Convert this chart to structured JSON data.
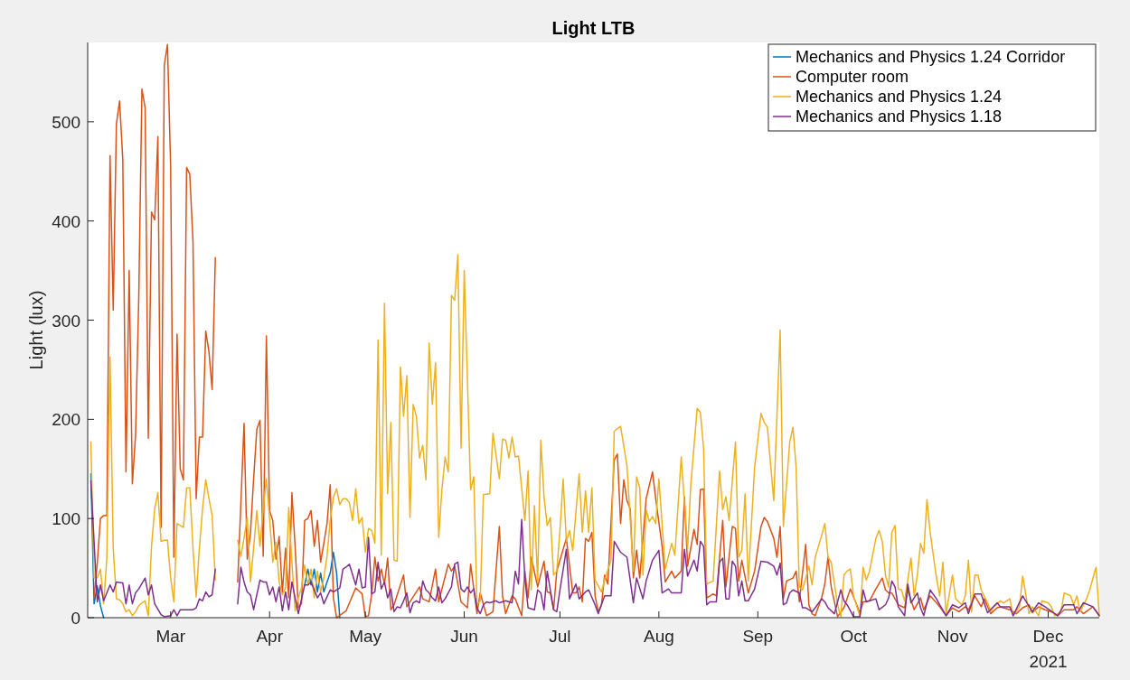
{
  "chart_data": {
    "type": "line",
    "title": "Light LTB",
    "ylabel": "Light (lux)",
    "xlim": [
      "2021-02-03",
      "2021-12-17"
    ],
    "xticks": [
      {
        "value": "2021-03-01",
        "label": "Mar"
      },
      {
        "value": "2021-04-01",
        "label": "Apr"
      },
      {
        "value": "2021-05-01",
        "label": "May"
      },
      {
        "value": "2021-06-01",
        "label": "Jun"
      },
      {
        "value": "2021-07-01",
        "label": "Jul"
      },
      {
        "value": "2021-08-01",
        "label": "Aug"
      },
      {
        "value": "2021-09-01",
        "label": "Sep"
      },
      {
        "value": "2021-10-01",
        "label": "Oct"
      },
      {
        "value": "2021-11-01",
        "label": "Nov"
      },
      {
        "value": "2021-12-01",
        "label": "Dec"
      }
    ],
    "ylim": [
      0,
      580
    ],
    "yticks": [
      0,
      100,
      200,
      300,
      400,
      500
    ],
    "grid": false,
    "legend": "top right",
    "marker": "none",
    "line_style": "solid",
    "annotations": [
      "2021"
    ],
    "series": [
      {
        "name": "Mechanics and Physics 1.24 Corridor",
        "color": "#0072bd",
        "x": [
          "2021-02-04",
          "2021-02-05",
          "2021-02-06",
          "2021-02-07",
          "2021-02-08",
          "2021-03-01",
          "2021-04-12",
          "2021-04-13",
          "2021-04-14",
          "2021-04-15",
          "2021-04-16",
          "2021-04-17",
          "2021-04-18",
          "2021-04-19",
          "2021-04-20",
          "2021-04-21",
          "2021-04-22",
          "2021-04-23"
        ],
        "values": [
          145,
          14,
          32,
          12,
          0,
          null,
          33,
          49,
          33,
          49,
          26,
          45,
          26,
          36,
          45,
          66,
          45,
          0
        ]
      },
      {
        "name": "Computer room",
        "color": "#d95319",
        "x": [
          "2021-02-05",
          "2021-02-06",
          "2021-02-07",
          "2021-02-08",
          "2021-02-09",
          "2021-02-10",
          "2021-02-11",
          "2021-02-12",
          "2021-02-13",
          "2021-02-14",
          "2021-02-15",
          "2021-02-16",
          "2021-02-17",
          "2021-02-18",
          "2021-02-19",
          "2021-02-20",
          "2021-02-21",
          "2021-02-22",
          "2021-02-23",
          "2021-02-24",
          "2021-02-25",
          "2021-02-26",
          "2021-02-27",
          "2021-02-28",
          "2021-03-01",
          "2021-03-02",
          "2021-03-03",
          "2021-03-04",
          "2021-03-05",
          "2021-03-06",
          "2021-03-07",
          "2021-03-08",
          "2021-03-09",
          "2021-03-10",
          "2021-03-11",
          "2021-03-12",
          "2021-03-13",
          "2021-03-14",
          "2021-03-15",
          "2021-03-18",
          "2021-03-22",
          "2021-03-23",
          "2021-03-24",
          "2021-03-25",
          "2021-03-26",
          "2021-03-27",
          "2021-03-28",
          "2021-03-29",
          "2021-03-30",
          "2021-03-31",
          "2021-04-01",
          "2021-04-02",
          "2021-04-03",
          "2021-04-04",
          "2021-04-05",
          "2021-04-06",
          "2021-04-07",
          "2021-04-08",
          "2021-04-09",
          "2021-04-10",
          "2021-04-11",
          "2021-04-12",
          "2021-04-13",
          "2021-04-14",
          "2021-04-15",
          "2021-04-16",
          "2021-04-17",
          "2021-04-18",
          "2021-04-19",
          "2021-04-20",
          "2021-04-21",
          "2021-04-22",
          "2021-04-25",
          "2021-04-28",
          "2021-04-30",
          "2021-05-01",
          "2021-05-02",
          "2021-05-03",
          "2021-05-04",
          "2021-05-05",
          "2021-05-06",
          "2021-05-07",
          "2021-05-08",
          "2021-05-09",
          "2021-05-10",
          "2021-05-13",
          "2021-05-14",
          "2021-05-15",
          "2021-05-18",
          "2021-05-19",
          "2021-05-21",
          "2021-05-23",
          "2021-05-24",
          "2021-05-27",
          "2021-05-28",
          "2021-05-29",
          "2021-05-31",
          "2021-06-01",
          "2021-06-02",
          "2021-06-03",
          "2021-06-05",
          "2021-06-06",
          "2021-06-08",
          "2021-06-10",
          "2021-06-12",
          "2021-06-13",
          "2021-06-14",
          "2021-06-16",
          "2021-06-17",
          "2021-06-19",
          "2021-06-20",
          "2021-06-21",
          "2021-06-22",
          "2021-06-24",
          "2021-06-26",
          "2021-06-27",
          "2021-06-28",
          "2021-06-29",
          "2021-06-30",
          "2021-07-03",
          "2021-07-05",
          "2021-07-06",
          "2021-07-07",
          "2021-07-08",
          "2021-07-09",
          "2021-07-10",
          "2021-07-11",
          "2021-07-12",
          "2021-07-13",
          "2021-07-14",
          "2021-07-15",
          "2021-07-16",
          "2021-07-18",
          "2021-07-19",
          "2021-07-20",
          "2021-07-21",
          "2021-07-22",
          "2021-07-23",
          "2021-07-24",
          "2021-07-25",
          "2021-07-26",
          "2021-07-28",
          "2021-07-30",
          "2021-07-31",
          "2021-08-02",
          "2021-08-03",
          "2021-08-05",
          "2021-08-06",
          "2021-08-08",
          "2021-08-09",
          "2021-08-10",
          "2021-08-12",
          "2021-08-13",
          "2021-08-14",
          "2021-08-15",
          "2021-08-16",
          "2021-08-18",
          "2021-08-19",
          "2021-08-21",
          "2021-08-22",
          "2021-08-24",
          "2021-08-25",
          "2021-08-26",
          "2021-08-27",
          "2021-08-29",
          "2021-08-31",
          "2021-09-02",
          "2021-09-03",
          "2021-09-04",
          "2021-09-06",
          "2021-09-07",
          "2021-09-08",
          "2021-09-09",
          "2021-09-10",
          "2021-09-12",
          "2021-09-13",
          "2021-09-14",
          "2021-09-16",
          "2021-09-17",
          "2021-09-18",
          "2021-09-19",
          "2021-09-21",
          "2021-09-22",
          "2021-09-23",
          "2021-09-24",
          "2021-09-26",
          "2021-09-28",
          "2021-09-30",
          "2021-10-02",
          "2021-10-03",
          "2021-10-04",
          "2021-10-06",
          "2021-10-08",
          "2021-10-10",
          "2021-10-11",
          "2021-10-12",
          "2021-10-13",
          "2021-10-15",
          "2021-10-17",
          "2021-10-18",
          "2021-10-20",
          "2021-10-22",
          "2021-10-23",
          "2021-10-25",
          "2021-10-27",
          "2021-10-28",
          "2021-10-30",
          "2021-11-01",
          "2021-11-03",
          "2021-11-05",
          "2021-11-06",
          "2021-11-08",
          "2021-11-10",
          "2021-11-11",
          "2021-11-13",
          "2021-11-15",
          "2021-11-16",
          "2021-11-19",
          "2021-11-21",
          "2021-11-23",
          "2021-11-25",
          "2021-11-26",
          "2021-11-28",
          "2021-11-30",
          "2021-12-02",
          "2021-12-04",
          "2021-12-06",
          "2021-12-09",
          "2021-12-10",
          "2021-12-12",
          "2021-12-15",
          "2021-12-17"
        ],
        "values": [
          20,
          55,
          100,
          103,
          103,
          466,
          310,
          498,
          521,
          462,
          147,
          350,
          135,
          184,
          321,
          533,
          514,
          181,
          409,
          401,
          485,
          91,
          557,
          578,
          454,
          61,
          286,
          150,
          139,
          454,
          447,
          379,
          120,
          182,
          182,
          289,
          268,
          230,
          363,
          null,
          36,
          115,
          196,
          59,
          85,
          140,
          190,
          199,
          62,
          284,
          108,
          98,
          59,
          82,
          26,
          70,
          20,
          126,
          72,
          10,
          14,
          98,
          100,
          108,
          72,
          98,
          56,
          75,
          95,
          134,
          20,
          0,
          7,
          30,
          24,
          1,
          2,
          24,
          61,
          37,
          49,
          34,
          60,
          8,
          13,
          43,
          11,
          16,
          31,
          19,
          16,
          49,
          16,
          54,
          47,
          52,
          16,
          13,
          10,
          54,
          4,
          25,
          2,
          6,
          92,
          22,
          4,
          22,
          19,
          2,
          47,
          20,
          61,
          31,
          57,
          26,
          25,
          8,
          47,
          80,
          25,
          25,
          31,
          16,
          80,
          77,
          86,
          22,
          6,
          13,
          43,
          34,
          159,
          165,
          95,
          139,
          118,
          110,
          40,
          68,
          40,
          120,
          147,
          120,
          72,
          36,
          47,
          40,
          47,
          122,
          52,
          89,
          74,
          129,
          130,
          20,
          24,
          22,
          98,
          31,
          92,
          90,
          37,
          58,
          25,
          47,
          92,
          101,
          97,
          80,
          61,
          92,
          19,
          37,
          40,
          47,
          16,
          74,
          13,
          4,
          2,
          20,
          34,
          61,
          31,
          1,
          10,
          29,
          13,
          4,
          16,
          17,
          29,
          40,
          28,
          25,
          25,
          13,
          10,
          28,
          8,
          20,
          8,
          22,
          15,
          11,
          2,
          10,
          6,
          11,
          8,
          22,
          11,
          19,
          4,
          10,
          11,
          8,
          4,
          10,
          13,
          5,
          11,
          8,
          6,
          2,
          8,
          8,
          11,
          4,
          11,
          2
        ]
      },
      {
        "name": "Mechanics and Physics 1.24",
        "color": "#edb120",
        "x": [
          "2021-02-04",
          "2021-02-05",
          "2021-02-06",
          "2021-02-07",
          "2021-02-08",
          "2021-02-09",
          "2021-02-10",
          "2021-02-11",
          "2021-02-12",
          "2021-02-13",
          "2021-02-14",
          "2021-02-15",
          "2021-02-16",
          "2021-02-17",
          "2021-02-18",
          "2021-02-19",
          "2021-02-20",
          "2021-02-21",
          "2021-02-22",
          "2021-02-23",
          "2021-02-24",
          "2021-02-25",
          "2021-02-26",
          "2021-02-27",
          "2021-02-28",
          "2021-03-01",
          "2021-03-02",
          "2021-03-03",
          "2021-03-04",
          "2021-03-05",
          "2021-03-06",
          "2021-03-07",
          "2021-03-08",
          "2021-03-09",
          "2021-03-10",
          "2021-03-11",
          "2021-03-12",
          "2021-03-13",
          "2021-03-14",
          "2021-03-15",
          "2021-03-18",
          "2021-03-22",
          "2021-03-23",
          "2021-03-24",
          "2021-03-25",
          "2021-03-26",
          "2021-03-27",
          "2021-03-28",
          "2021-03-29",
          "2021-03-30",
          "2021-03-31",
          "2021-04-01",
          "2021-04-02",
          "2021-04-03",
          "2021-04-04",
          "2021-04-05",
          "2021-04-06",
          "2021-04-07",
          "2021-04-08",
          "2021-04-09",
          "2021-04-10",
          "2021-04-11",
          "2021-04-12",
          "2021-04-13",
          "2021-04-14",
          "2021-04-15",
          "2021-04-16",
          "2021-04-17",
          "2021-04-18",
          "2021-04-19",
          "2021-04-20",
          "2021-04-21",
          "2021-04-22",
          "2021-04-23",
          "2021-04-24",
          "2021-04-25",
          "2021-04-26",
          "2021-04-27",
          "2021-04-28",
          "2021-04-29",
          "2021-04-30",
          "2021-05-01",
          "2021-05-02",
          "2021-05-03",
          "2021-05-04",
          "2021-05-05",
          "2021-05-06",
          "2021-05-07",
          "2021-05-08",
          "2021-05-09",
          "2021-05-10",
          "2021-05-11",
          "2021-05-12",
          "2021-05-13",
          "2021-05-14",
          "2021-05-15",
          "2021-05-16",
          "2021-05-17",
          "2021-05-18",
          "2021-05-19",
          "2021-05-20",
          "2021-05-21",
          "2021-05-22",
          "2021-05-23",
          "2021-05-24",
          "2021-05-25",
          "2021-05-26",
          "2021-05-27",
          "2021-05-28",
          "2021-05-29",
          "2021-05-30",
          "2021-05-31",
          "2021-06-01",
          "2021-06-03",
          "2021-06-04",
          "2021-06-05",
          "2021-06-06",
          "2021-06-07",
          "2021-06-09",
          "2021-06-10",
          "2021-06-12",
          "2021-06-13",
          "2021-06-14",
          "2021-06-15",
          "2021-06-16",
          "2021-06-17",
          "2021-06-18",
          "2021-06-20",
          "2021-06-21",
          "2021-06-22",
          "2021-06-23",
          "2021-06-24",
          "2021-06-25",
          "2021-06-26",
          "2021-06-27",
          "2021-06-28",
          "2021-06-29",
          "2021-06-30",
          "2021-07-01",
          "2021-07-02",
          "2021-07-03",
          "2021-07-04",
          "2021-07-05",
          "2021-07-07",
          "2021-07-08",
          "2021-07-09",
          "2021-07-10",
          "2021-07-11",
          "2021-07-12",
          "2021-07-14",
          "2021-07-15",
          "2021-07-17",
          "2021-07-18",
          "2021-07-20",
          "2021-07-22",
          "2021-07-24",
          "2021-07-25",
          "2021-07-26",
          "2021-07-27",
          "2021-07-28",
          "2021-07-29",
          "2021-07-30",
          "2021-07-31",
          "2021-08-01",
          "2021-08-03",
          "2021-08-05",
          "2021-08-06",
          "2021-08-08",
          "2021-08-10",
          "2021-08-11",
          "2021-08-13",
          "2021-08-14",
          "2021-08-15",
          "2021-08-16",
          "2021-08-18",
          "2021-08-20",
          "2021-08-21",
          "2021-08-22",
          "2021-08-23",
          "2021-08-25",
          "2021-08-26",
          "2021-08-27",
          "2021-08-28",
          "2021-08-29",
          "2021-08-31",
          "2021-09-02",
          "2021-09-03",
          "2021-09-04",
          "2021-09-06",
          "2021-09-08",
          "2021-09-09",
          "2021-09-11",
          "2021-09-12",
          "2021-09-13",
          "2021-09-14",
          "2021-09-15",
          "2021-09-17",
          "2021-09-18",
          "2021-09-19",
          "2021-09-21",
          "2021-09-22",
          "2021-09-23",
          "2021-09-24",
          "2021-09-26",
          "2021-09-27",
          "2021-09-28",
          "2021-09-29",
          "2021-09-30",
          "2021-10-01",
          "2021-10-03",
          "2021-10-04",
          "2021-10-05",
          "2021-10-06",
          "2021-10-08",
          "2021-10-09",
          "2021-10-10",
          "2021-10-11",
          "2021-10-12",
          "2021-10-13",
          "2021-10-14",
          "2021-10-15",
          "2021-10-16",
          "2021-10-17",
          "2021-10-19",
          "2021-10-20",
          "2021-10-21",
          "2021-10-22",
          "2021-10-23",
          "2021-10-24",
          "2021-10-25",
          "2021-10-27",
          "2021-10-28",
          "2021-10-29",
          "2021-10-30",
          "2021-11-01",
          "2021-11-02",
          "2021-11-04",
          "2021-11-05",
          "2021-11-06",
          "2021-11-07",
          "2021-11-08",
          "2021-11-09",
          "2021-11-10",
          "2021-11-12",
          "2021-11-13",
          "2021-11-14",
          "2021-11-16",
          "2021-11-17",
          "2021-11-19",
          "2021-11-20",
          "2021-11-22",
          "2021-11-23",
          "2021-11-25",
          "2021-11-26",
          "2021-11-28",
          "2021-11-29",
          "2021-12-01",
          "2021-12-02",
          "2021-12-03",
          "2021-12-05",
          "2021-12-06",
          "2021-12-08",
          "2021-12-09",
          "2021-12-10",
          "2021-12-11",
          "2021-12-13",
          "2021-12-14",
          "2021-12-16",
          "2021-12-17"
        ],
        "values": [
          177,
          40,
          40,
          49,
          14,
          60,
          263,
          70,
          19,
          18,
          14,
          6,
          8,
          2,
          6,
          12,
          15,
          17,
          2,
          72,
          110,
          126,
          77,
          78,
          78,
          40,
          16,
          95,
          93,
          91,
          131,
          131,
          70,
          21,
          70,
          110,
          139,
          120,
          103,
          38,
          null,
          78,
          62,
          80,
          101,
          36,
          70,
          108,
          72,
          110,
          140,
          100,
          56,
          76,
          36,
          23,
          30,
          111,
          56,
          7,
          20,
          30,
          53,
          33,
          49,
          20,
          47,
          26,
          40,
          62,
          98,
          121,
          130,
          114,
          120,
          120,
          116,
          98,
          130,
          95,
          101,
          66,
          90,
          88,
          75,
          280,
          63,
          317,
          125,
          197,
          58,
          57,
          253,
          203,
          244,
          101,
          215,
          203,
          161,
          174,
          139,
          277,
          215,
          257,
          81,
          129,
          162,
          147,
          325,
          320,
          366,
          171,
          350,
          129,
          142,
          13,
          17,
          124,
          125,
          186,
          140,
          180,
          179,
          161,
          182,
          162,
          163,
          98,
          148,
          28,
          113,
          36,
          179,
          122,
          93,
          101,
          43,
          47,
          88,
          140,
          77,
          88,
          68,
          145,
          86,
          128,
          86,
          131,
          38,
          26,
          38,
          58,
          188,
          193,
          153,
          47,
          142,
          131,
          43,
          109,
          97,
          102,
          95,
          140,
          49,
          75,
          63,
          162,
          70,
          134,
          211,
          207,
          171,
          34,
          37,
          148,
          109,
          122,
          98,
          177,
          61,
          68,
          125,
          37,
          152,
          206,
          197,
          192,
          118,
          290,
          92,
          177,
          192,
          152,
          31,
          28,
          52,
          33,
          61,
          83,
          95,
          61,
          56,
          13,
          1,
          43,
          47,
          49,
          22,
          1,
          51,
          38,
          47,
          80,
          88,
          77,
          43,
          31,
          86,
          93,
          29,
          28,
          17,
          60,
          22,
          43,
          75,
          65,
          119,
          86,
          40,
          22,
          56,
          4,
          43,
          19,
          13,
          22,
          58,
          6,
          43,
          43,
          28,
          15,
          6,
          11,
          17,
          15,
          19,
          2,
          11,
          42,
          4,
          11,
          2,
          17,
          15,
          11,
          2,
          6,
          25,
          22,
          13,
          22,
          6,
          19,
          28,
          51,
          2
        ]
      },
      {
        "name": "Mechanics and Physics 1.18",
        "color": "#7e2f8e",
        "x": [
          "2021-02-04",
          "2021-02-06",
          "2021-02-07",
          "2021-02-08",
          "2021-02-10",
          "2021-02-11",
          "2021-02-12",
          "2021-02-14",
          "2021-02-15",
          "2021-02-16",
          "2021-02-17",
          "2021-02-18",
          "2021-02-19",
          "2021-02-21",
          "2021-02-22",
          "2021-02-23",
          "2021-02-24",
          "2021-02-26",
          "2021-02-27",
          "2021-03-01",
          "2021-03-02",
          "2021-03-03",
          "2021-03-04",
          "2021-03-06",
          "2021-03-08",
          "2021-03-09",
          "2021-03-10",
          "2021-03-11",
          "2021-03-12",
          "2021-03-13",
          "2021-03-14",
          "2021-03-15",
          "2021-03-18",
          "2021-03-22",
          "2021-03-23",
          "2021-03-24",
          "2021-03-25",
          "2021-03-26",
          "2021-03-27",
          "2021-03-29",
          "2021-03-30",
          "2021-03-31",
          "2021-04-01",
          "2021-04-02",
          "2021-04-03",
          "2021-04-04",
          "2021-04-05",
          "2021-04-06",
          "2021-04-07",
          "2021-04-08",
          "2021-04-09",
          "2021-04-10",
          "2021-04-12",
          "2021-04-13",
          "2021-04-14",
          "2021-04-16",
          "2021-04-17",
          "2021-04-18",
          "2021-04-19",
          "2021-04-20",
          "2021-04-21",
          "2021-04-23",
          "2021-04-24",
          "2021-04-25",
          "2021-04-26",
          "2021-04-28",
          "2021-04-29",
          "2021-04-30",
          "2021-05-01",
          "2021-05-02",
          "2021-05-03",
          "2021-05-04",
          "2021-05-05",
          "2021-05-06",
          "2021-05-07",
          "2021-05-08",
          "2021-05-09",
          "2021-05-10",
          "2021-05-11",
          "2021-05-12",
          "2021-05-13",
          "2021-05-14",
          "2021-05-15",
          "2021-05-16",
          "2021-05-17",
          "2021-05-18",
          "2021-05-19",
          "2021-05-20",
          "2021-05-21",
          "2021-05-22",
          "2021-05-23",
          "2021-05-24",
          "2021-05-25",
          "2021-05-26",
          "2021-05-28",
          "2021-05-29",
          "2021-05-30",
          "2021-05-31",
          "2021-06-01",
          "2021-06-02",
          "2021-06-03",
          "2021-06-04",
          "2021-06-05",
          "2021-06-06",
          "2021-06-07",
          "2021-06-08",
          "2021-06-09",
          "2021-06-11",
          "2021-06-12",
          "2021-06-14",
          "2021-06-16",
          "2021-06-17",
          "2021-06-18",
          "2021-06-19",
          "2021-06-20",
          "2021-06-21",
          "2021-06-23",
          "2021-06-24",
          "2021-06-25",
          "2021-06-26",
          "2021-06-27",
          "2021-06-29",
          "2021-06-30",
          "2021-07-01",
          "2021-07-03",
          "2021-07-04",
          "2021-07-06",
          "2021-07-07",
          "2021-07-09",
          "2021-07-10",
          "2021-07-12",
          "2021-07-13",
          "2021-07-15",
          "2021-07-17",
          "2021-07-18",
          "2021-07-20",
          "2021-07-22",
          "2021-07-24",
          "2021-07-25",
          "2021-07-27",
          "2021-07-28",
          "2021-07-30",
          "2021-08-01",
          "2021-08-02",
          "2021-08-04",
          "2021-08-05",
          "2021-08-08",
          "2021-08-09",
          "2021-08-10",
          "2021-08-12",
          "2021-08-13",
          "2021-08-14",
          "2021-08-15",
          "2021-08-16",
          "2021-08-17",
          "2021-08-19",
          "2021-08-20",
          "2021-08-21",
          "2021-08-22",
          "2021-08-23",
          "2021-08-24",
          "2021-08-25",
          "2021-08-26",
          "2021-08-27",
          "2021-08-28",
          "2021-08-29",
          "2021-08-31",
          "2021-09-02",
          "2021-09-04",
          "2021-09-06",
          "2021-09-07",
          "2021-09-08",
          "2021-09-09",
          "2021-09-10",
          "2021-09-11",
          "2021-09-12",
          "2021-09-14",
          "2021-09-15",
          "2021-09-16",
          "2021-09-18",
          "2021-09-19",
          "2021-09-21",
          "2021-09-22",
          "2021-09-23",
          "2021-09-25",
          "2021-09-27",
          "2021-09-28",
          "2021-09-29",
          "2021-10-01",
          "2021-10-03",
          "2021-10-04",
          "2021-10-05",
          "2021-10-06",
          "2021-10-08",
          "2021-10-09",
          "2021-10-11",
          "2021-10-12",
          "2021-10-13",
          "2021-10-14",
          "2021-10-15",
          "2021-10-17",
          "2021-10-18",
          "2021-10-19",
          "2021-10-21",
          "2021-10-22",
          "2021-10-23",
          "2021-10-25",
          "2021-10-27",
          "2021-10-28",
          "2021-10-30",
          "2021-11-01",
          "2021-11-03",
          "2021-11-05",
          "2021-11-06",
          "2021-11-08",
          "2021-11-10",
          "2021-11-12",
          "2021-11-15",
          "2021-11-16",
          "2021-11-19",
          "2021-11-20",
          "2021-11-23",
          "2021-11-26",
          "2021-11-28",
          "2021-11-30",
          "2021-12-04",
          "2021-12-06",
          "2021-12-09",
          "2021-12-10",
          "2021-12-12",
          "2021-12-15",
          "2021-12-17"
        ],
        "values": [
          138,
          16,
          33,
          17,
          33,
          26,
          36,
          35,
          14,
          33,
          14,
          25,
          29,
          40,
          23,
          33,
          14,
          3,
          1,
          2,
          8,
          2,
          8,
          8,
          8,
          10,
          19,
          17,
          26,
          21,
          23,
          49,
          null,
          14,
          51,
          36,
          26,
          23,
          8,
          38,
          36,
          36,
          23,
          31,
          16,
          31,
          7,
          26,
          8,
          36,
          20,
          4,
          33,
          33,
          36,
          20,
          25,
          14,
          21,
          28,
          26,
          30,
          49,
          51,
          54,
          33,
          49,
          30,
          31,
          81,
          24,
          26,
          56,
          29,
          36,
          20,
          29,
          6,
          11,
          10,
          17,
          25,
          5,
          15,
          17,
          15,
          37,
          28,
          25,
          20,
          17,
          31,
          15,
          19,
          31,
          54,
          56,
          29,
          26,
          31,
          25,
          29,
          10,
          4,
          13,
          16,
          15,
          17,
          15,
          17,
          15,
          47,
          34,
          99,
          40,
          10,
          8,
          28,
          25,
          8,
          47,
          8,
          6,
          28,
          69,
          19,
          34,
          19,
          26,
          28,
          13,
          4,
          22,
          22,
          77,
          66,
          61,
          15,
          40,
          19,
          37,
          58,
          68,
          25,
          29,
          25,
          25,
          69,
          42,
          58,
          47,
          77,
          72,
          13,
          16,
          16,
          56,
          60,
          19,
          19,
          57,
          52,
          22,
          37,
          17,
          17,
          29,
          57,
          56,
          52,
          43,
          55,
          13,
          15,
          25,
          28,
          25,
          10,
          10,
          6,
          10,
          19,
          16,
          10,
          4,
          28,
          17,
          13,
          1,
          1,
          28,
          16,
          17,
          19,
          8,
          13,
          20,
          37,
          31,
          11,
          2,
          34,
          15,
          25,
          10,
          2,
          28,
          19,
          13,
          2,
          13,
          10,
          15,
          4,
          24,
          24,
          5,
          15,
          11,
          11,
          2,
          22,
          6,
          15,
          11,
          2,
          13,
          13,
          4,
          15,
          11,
          2
        ]
      }
    ]
  }
}
